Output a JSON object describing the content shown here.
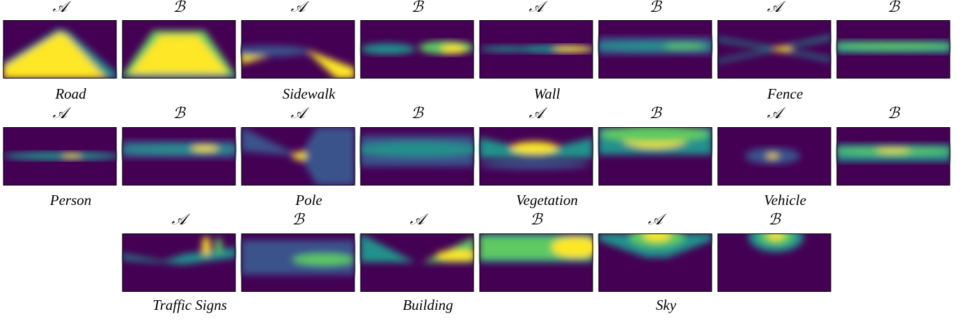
{
  "rows": [
    {
      "groups": [
        {
          "name": "Road",
          "labels": [
            "𝒜",
            "ℬ"
          ]
        },
        {
          "name": "Sidewalk",
          "labels": [
            "𝒜",
            "ℬ"
          ]
        },
        {
          "name": "Wall",
          "labels": [
            "𝒜",
            "ℬ"
          ]
        },
        {
          "name": "Fence",
          "labels": [
            "𝒜",
            "ℬ"
          ]
        }
      ]
    },
    {
      "groups": [
        {
          "name": "Person",
          "labels": [
            "𝒜",
            "ℬ"
          ]
        },
        {
          "name": "Pole",
          "labels": [
            "𝒜",
            "ℬ"
          ]
        },
        {
          "name": "Vegetation",
          "labels": [
            "𝒜",
            "ℬ"
          ]
        },
        {
          "name": "Vehicle",
          "labels": [
            "𝒜",
            "ℬ"
          ]
        }
      ]
    },
    {
      "groups": [
        {
          "name": "Traffic Signs",
          "labels": [
            "𝒜",
            "ℬ"
          ]
        },
        {
          "name": "Building",
          "labels": [
            "𝒜",
            "ℬ"
          ]
        },
        {
          "name": "Sky",
          "labels": [
            "𝒜",
            "ℬ"
          ]
        }
      ]
    }
  ]
}
